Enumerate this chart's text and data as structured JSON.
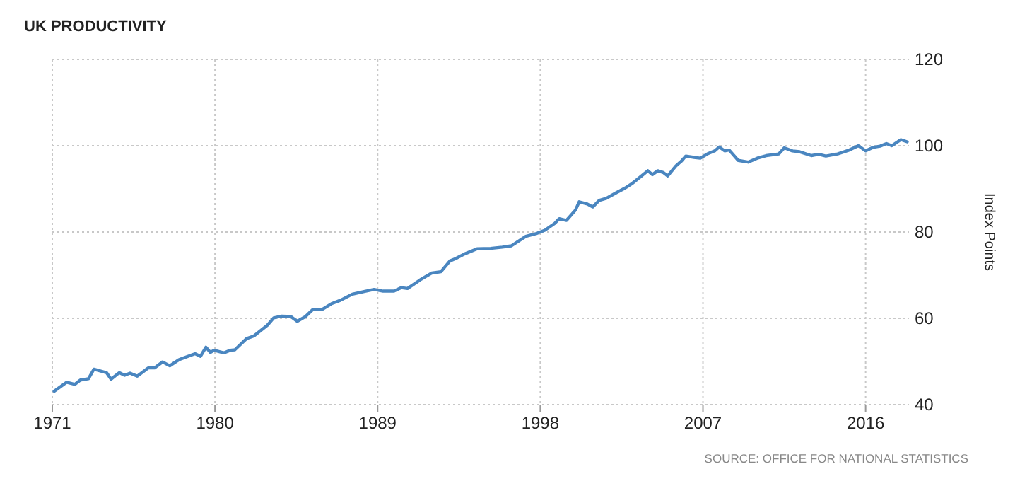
{
  "chart_data": {
    "type": "line",
    "title": "UK PRODUCTIVITY",
    "ylabel": "Index Points",
    "annotations": [
      "SOURCE: OFFICE FOR NATIONAL STATISTICS"
    ],
    "xlim": [
      1971,
      2018.4
    ],
    "xticks": [
      1971,
      1980,
      1989,
      1998,
      2007,
      2016
    ],
    "ylim": [
      40,
      120
    ],
    "yticks": [
      40,
      60,
      80,
      100,
      120
    ],
    "grid": true,
    "marker": "none",
    "line_style": "solid",
    "series": [
      {
        "color": "#4a86c0",
        "x": [
          1971.1,
          1971.8,
          1972.25,
          1972.55,
          1973.0,
          1973.3,
          1974.0,
          1974.25,
          1974.7,
          1975.0,
          1975.3,
          1975.7,
          1976.3,
          1976.65,
          1977.1,
          1977.5,
          1978.0,
          1978.9,
          1979.2,
          1979.5,
          1979.75,
          1979.95,
          1980.5,
          1980.85,
          1981.1,
          1981.75,
          1982.15,
          1982.9,
          1983.25,
          1983.7,
          1984.2,
          1984.55,
          1985.0,
          1985.4,
          1985.9,
          1986.45,
          1986.95,
          1987.6,
          1988.25,
          1988.8,
          1989.3,
          1989.9,
          1990.3,
          1990.65,
          1991.35,
          1992.0,
          1992.5,
          1993.0,
          1993.3,
          1993.8,
          1994.5,
          1995.25,
          1995.9,
          1996.4,
          1997.2,
          1997.75,
          1998.25,
          1998.8,
          1999.05,
          1999.45,
          1999.95,
          2000.15,
          2000.6,
          2000.9,
          2001.25,
          2001.65,
          2002.2,
          2002.7,
          2003.1,
          2003.6,
          2003.95,
          2004.2,
          2004.5,
          2004.8,
          2005.05,
          2005.5,
          2005.8,
          2006.05,
          2006.5,
          2006.85,
          2007.25,
          2007.65,
          2007.9,
          2008.2,
          2008.45,
          2008.95,
          2009.5,
          2010.0,
          2010.5,
          2011.2,
          2011.5,
          2011.95,
          2012.35,
          2013.0,
          2013.4,
          2013.8,
          2014.45,
          2015.1,
          2015.6,
          2016.0,
          2016.4,
          2016.8,
          2017.15,
          2017.45,
          2017.95,
          2018.3
        ],
        "values": [
          43.1,
          45.2,
          44.7,
          45.7,
          46.0,
          48.2,
          47.4,
          45.9,
          47.4,
          46.8,
          47.3,
          46.6,
          48.5,
          48.5,
          49.9,
          49.0,
          50.4,
          51.8,
          51.2,
          53.3,
          52.1,
          52.6,
          52.0,
          52.6,
          52.7,
          55.3,
          55.9,
          58.4,
          60.1,
          60.5,
          60.4,
          59.3,
          60.4,
          62.0,
          62.0,
          63.4,
          64.2,
          65.6,
          66.2,
          66.7,
          66.3,
          66.3,
          67.1,
          66.9,
          68.9,
          70.5,
          70.8,
          73.3,
          73.8,
          74.9,
          76.1,
          76.2,
          76.5,
          76.8,
          79.0,
          79.6,
          80.4,
          82.0,
          83.1,
          82.7,
          85.1,
          87.0,
          86.5,
          85.8,
          87.3,
          87.8,
          89.1,
          90.2,
          91.3,
          93.0,
          94.2,
          93.3,
          94.2,
          93.8,
          93.0,
          95.3,
          96.4,
          97.6,
          97.3,
          97.1,
          98.1,
          98.8,
          99.7,
          98.8,
          99.0,
          96.6,
          96.2,
          97.1,
          97.7,
          98.1,
          99.5,
          98.8,
          98.6,
          97.7,
          98.0,
          97.6,
          98.1,
          99.0,
          100.0,
          98.8,
          99.6,
          99.9,
          100.5,
          100.0,
          101.4,
          100.9
        ]
      }
    ]
  }
}
